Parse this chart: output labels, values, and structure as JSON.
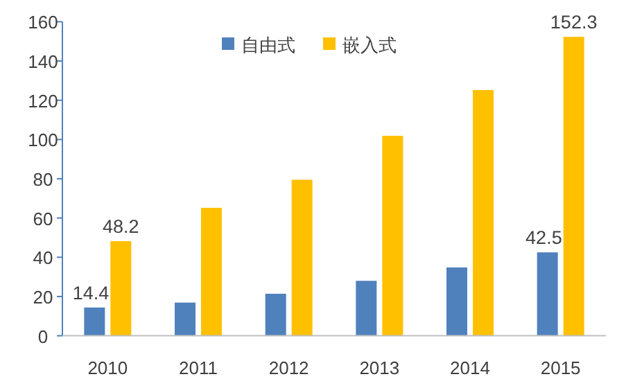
{
  "chart_data": {
    "type": "bar",
    "categories": [
      "2010",
      "2011",
      "2012",
      "2013",
      "2014",
      "2015"
    ],
    "series": [
      {
        "name": "自由式",
        "color": "#4f81bd",
        "values": [
          14.4,
          16.9,
          21.4,
          28.0,
          34.8,
          42.5
        ],
        "value_labels": [
          "14.4",
          null,
          null,
          null,
          null,
          "42.5"
        ]
      },
      {
        "name": "嵌入式",
        "color": "#ffc000",
        "values": [
          48.2,
          65.2,
          79.5,
          101.9,
          125.2,
          152.3
        ],
        "value_labels": [
          "48.2",
          null,
          null,
          null,
          null,
          "152.3"
        ]
      }
    ],
    "ylim": [
      0,
      160
    ],
    "yticks": [
      0,
      20,
      40,
      60,
      80,
      100,
      120,
      140,
      160
    ],
    "grid": false,
    "legend": "top"
  }
}
